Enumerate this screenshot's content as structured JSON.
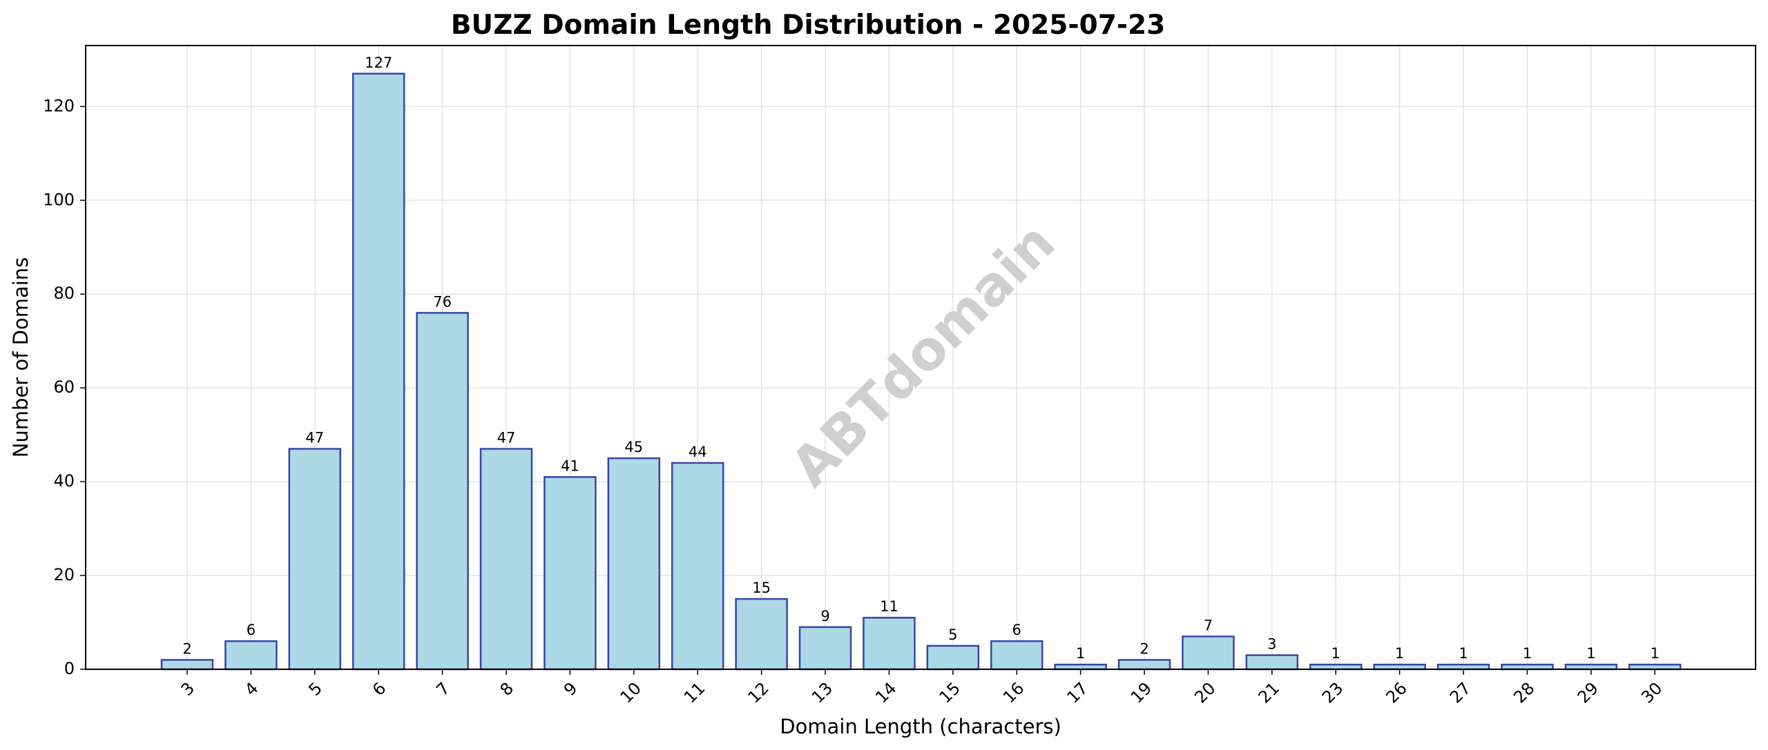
{
  "chart_data": {
    "type": "bar",
    "title": "BUZZ Domain Length Distribution - 2025-07-23",
    "xlabel": "Domain Length (characters)",
    "ylabel": "Number of Domains",
    "categories": [
      "3",
      "4",
      "5",
      "6",
      "7",
      "8",
      "9",
      "10",
      "11",
      "12",
      "13",
      "14",
      "15",
      "16",
      "17",
      "19",
      "20",
      "21",
      "23",
      "26",
      "27",
      "28",
      "29",
      "30"
    ],
    "values": [
      2,
      6,
      47,
      127,
      76,
      47,
      41,
      45,
      44,
      15,
      9,
      11,
      5,
      6,
      1,
      2,
      7,
      3,
      1,
      1,
      1,
      1,
      1,
      1
    ],
    "ylim": [
      0,
      133
    ],
    "yticks": [
      0,
      20,
      40,
      60,
      80,
      100,
      120
    ],
    "grid": true,
    "data_labels": true,
    "bar_color": "#add8e6",
    "bar_edge_color": "#3a44a8"
  },
  "watermark": "ABTdomain"
}
